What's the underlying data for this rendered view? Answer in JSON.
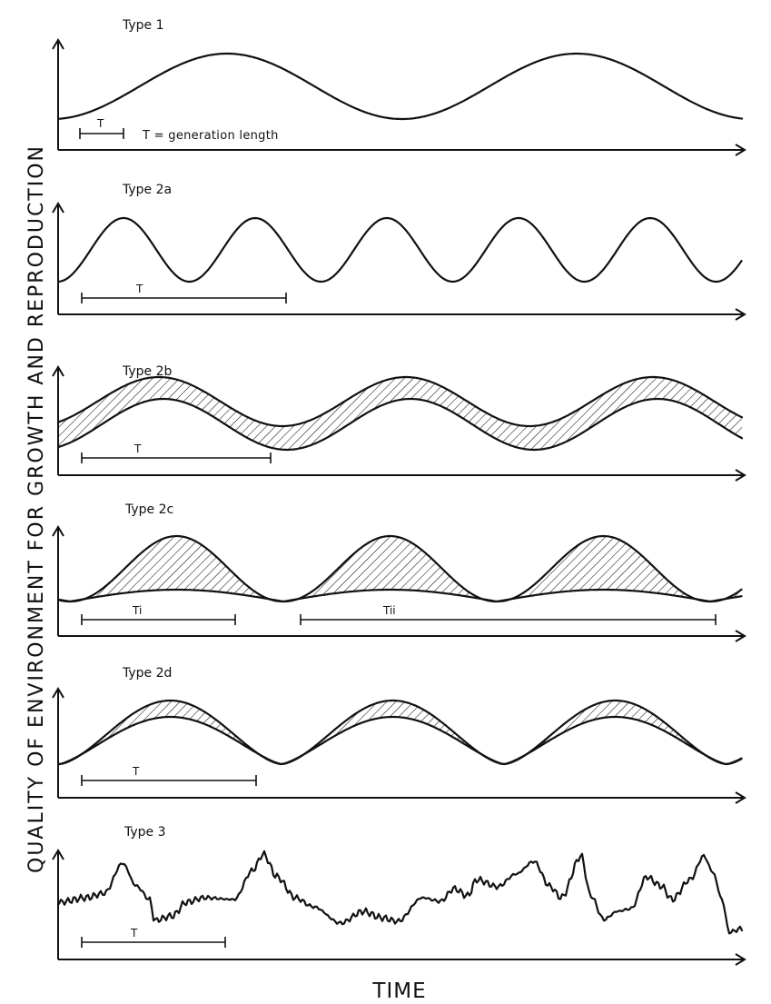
{
  "ylabel": "QUALITY OF ENVIRONMENT FOR GROWTH AND REPRODUCTION",
  "xlabel": "TIME",
  "generation_note": "T = generation length",
  "panels": [
    {
      "title": "Type 1",
      "t_labels": [
        "T"
      ]
    },
    {
      "title": "Type 2a",
      "t_labels": [
        "T"
      ]
    },
    {
      "title": "Type 2b",
      "t_labels": [
        "T"
      ]
    },
    {
      "title": "Type 2c",
      "t_labels": [
        "Ti",
        "Tii"
      ]
    },
    {
      "title": "Type 2d",
      "t_labels": [
        "T"
      ]
    },
    {
      "title": "Type 3",
      "t_labels": [
        "T"
      ]
    }
  ]
}
